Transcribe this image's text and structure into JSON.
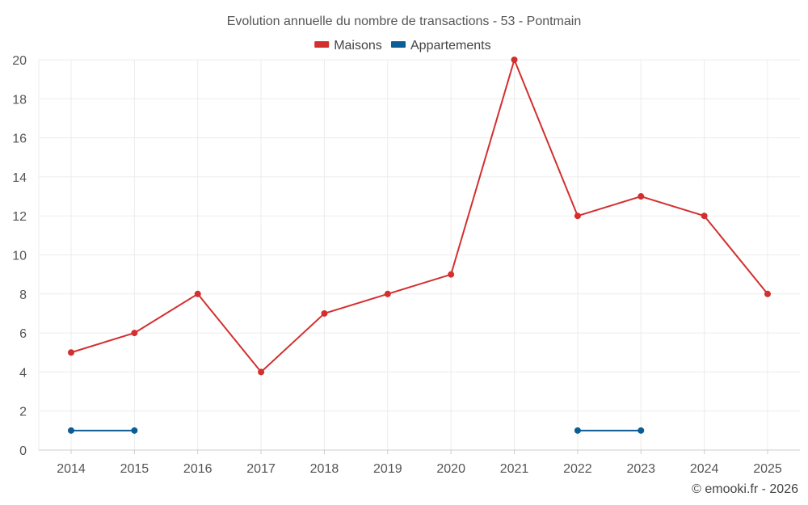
{
  "chart_data": {
    "type": "line",
    "title": "Evolution annuelle du nombre de transactions - 53 - Pontmain",
    "xlabel": "",
    "ylabel": "",
    "categories": [
      "2014",
      "2015",
      "2016",
      "2017",
      "2018",
      "2019",
      "2020",
      "2021",
      "2022",
      "2023",
      "2024",
      "2025"
    ],
    "ylim": [
      0,
      20
    ],
    "yticks": [
      0,
      2,
      4,
      6,
      8,
      10,
      12,
      14,
      16,
      18,
      20
    ],
    "grid": true,
    "legend_position": "top-center",
    "series": [
      {
        "name": "Maisons",
        "color": "#d32f2f",
        "values": [
          5,
          6,
          8,
          4,
          7,
          8,
          9,
          20,
          12,
          13,
          12,
          8
        ]
      },
      {
        "name": "Appartements",
        "color": "#0b5e95",
        "values": [
          1,
          1,
          null,
          null,
          null,
          null,
          null,
          null,
          1,
          1,
          null,
          null
        ]
      }
    ]
  },
  "credit": "© emooki.fr - 2026"
}
